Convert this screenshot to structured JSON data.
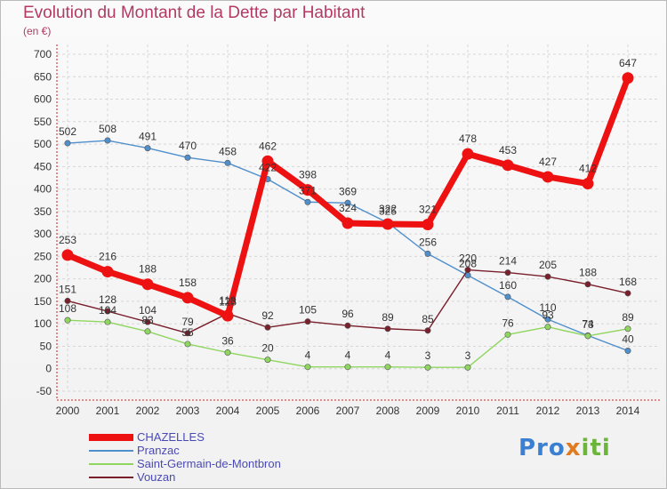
{
  "header": {
    "title": "Evolution du Montant de la Dette par Habitant",
    "unit": "(en €)"
  },
  "logo": {
    "text": "Proxiti"
  },
  "chart_data": {
    "type": "line",
    "x": [
      2000,
      2001,
      2002,
      2003,
      2004,
      2005,
      2006,
      2007,
      2008,
      2009,
      2010,
      2011,
      2012,
      2013,
      2014
    ],
    "ylim": [
      -50,
      700
    ],
    "yticks": [
      -50,
      0,
      50,
      100,
      150,
      200,
      250,
      300,
      350,
      400,
      450,
      500,
      550,
      600,
      650,
      700
    ],
    "grid": true,
    "legend_position": "bottom-left",
    "series": [
      {
        "name": "Pranzac",
        "color": "#4f8fcb",
        "values": [
          502,
          508,
          491,
          470,
          458,
          422,
          371,
          369,
          325,
          256,
          208,
          160,
          110,
          74,
          40
        ]
      },
      {
        "name": "Saint-Germain-de-Montbron",
        "color": "#8fd65f",
        "values": [
          108,
          104,
          83,
          55,
          36,
          20,
          4,
          4,
          4,
          3,
          3,
          76,
          93,
          73,
          89
        ]
      },
      {
        "name": "Vouzan",
        "color": "#7a1f2c",
        "values": [
          151,
          128,
          104,
          79,
          123,
          92,
          105,
          96,
          89,
          85,
          220,
          214,
          205,
          188,
          168
        ]
      },
      {
        "name": "CHAZELLES",
        "color": "#ee1111",
        "values": [
          253,
          216,
          188,
          158,
          118,
          462,
          398,
          324,
          322,
          321,
          478,
          453,
          427,
          412,
          647
        ]
      }
    ]
  }
}
